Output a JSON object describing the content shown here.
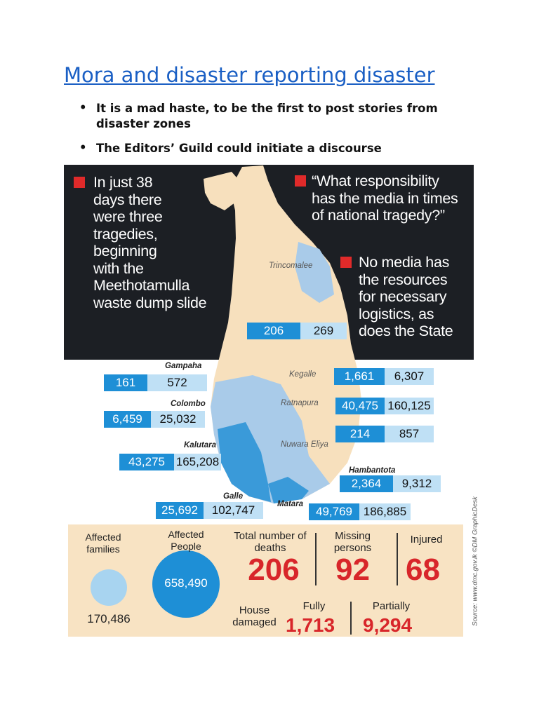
{
  "title": "Mora and disaster reporting disaster",
  "bullets": [
    "It is a mad haste, to be the first to post stories from disaster zones",
    "The Editors’ Guild could initiate a discourse"
  ],
  "infographic": {
    "quotes": [
      {
        "lines": [
          "In just 38",
          "days there",
          "were three",
          "tragedies,",
          "beginning",
          "with the",
          "Meethotamulla",
          "waste dump slide"
        ]
      },
      {
        "lines": [
          "“What responsibility",
          "has the media in times",
          "of national tragedy?”"
        ]
      },
      {
        "lines": [
          "No media has",
          "the resources",
          "for necessary",
          "logistics, as",
          "does the State"
        ]
      }
    ],
    "districts": [
      {
        "name": "Trincomalee",
        "families": "206",
        "people": "269"
      },
      {
        "name": "Gampaha",
        "families": "161",
        "people": "572"
      },
      {
        "name": "Colombo",
        "families": "6,459",
        "people": "25,032"
      },
      {
        "name": "Kalutara",
        "families": "43,275",
        "people": "165,208"
      },
      {
        "name": "Galle",
        "families": "25,692",
        "people": "102,747"
      },
      {
        "name": "Matara",
        "families": "49,769",
        "people": "186,885"
      },
      {
        "name": "Hambantota",
        "families": "2,364",
        "people": "9,312"
      },
      {
        "name": "Nuwara Eliya",
        "families": "214",
        "people": "857"
      },
      {
        "name": "Ratnapura",
        "families": "40,475",
        "people": "160,125"
      },
      {
        "name": "Kegalle",
        "families": "1,661",
        "people": "6,307"
      }
    ],
    "summary": {
      "affected_families": {
        "label": "Affected families",
        "value": "170,486"
      },
      "affected_people": {
        "label": "Affected People",
        "value": "658,490"
      },
      "deaths": {
        "label": "Total number of deaths",
        "value": "206"
      },
      "missing": {
        "label": "Missing persons",
        "value": "92"
      },
      "injured": {
        "label": "Injured",
        "value": "68"
      },
      "house_damaged": {
        "label": "House damaged",
        "fully": {
          "label": "Fully",
          "value": "1,713"
        },
        "partially": {
          "label": "Partially",
          "value": "9,294"
        }
      }
    },
    "source": "Source: www.dmc.gov.lk ©DM GraphicDesk"
  }
}
